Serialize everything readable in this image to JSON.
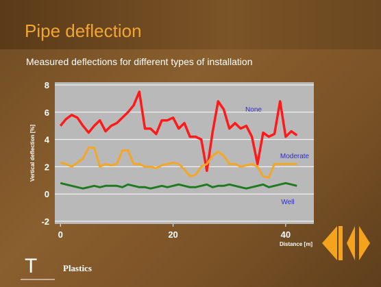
{
  "title": "Pipe deflection",
  "subtitle": "Measured deflections for different types of installation",
  "logo_text": "Plastics",
  "chart_data": {
    "type": "line",
    "y_label": "Vertical deflection [%]",
    "x_label": "Distance [m]",
    "x": [
      0,
      1,
      2,
      3,
      4,
      5,
      6,
      7,
      8,
      9,
      10,
      11,
      12,
      13,
      14,
      15,
      16,
      17,
      18,
      19,
      20,
      21,
      22,
      23,
      24,
      25,
      26,
      27,
      28,
      29,
      30,
      31,
      32,
      33,
      34,
      35,
      36,
      37,
      38,
      39,
      40,
      41,
      42
    ],
    "series": [
      {
        "name": "None",
        "color": "#ff1a1a",
        "values": [
          5,
          5.5,
          5.8,
          5.6,
          5,
          4.5,
          5,
          5.4,
          4.6,
          5,
          5.2,
          5.6,
          6,
          6.5,
          7.5,
          4.8,
          4.8,
          4.4,
          5.4,
          5.4,
          5.6,
          4.8,
          5.2,
          4.2,
          4.2,
          4,
          1.7,
          4.5,
          6.8,
          6.2,
          4.8,
          5.2,
          4.8,
          5,
          4.2,
          2.2,
          4.5,
          4.2,
          4.4,
          6.8,
          4.2,
          4.6,
          4.3
        ]
      },
      {
        "name": "Moderate",
        "color": "#f5a623",
        "values": [
          2.3,
          2.2,
          2,
          2.3,
          2.6,
          3.4,
          3.4,
          2,
          2.2,
          2.1,
          2.2,
          3.2,
          3.2,
          2.2,
          2.2,
          2,
          2,
          1.9,
          2.1,
          2.2,
          2.3,
          2.2,
          1.8,
          1.3,
          1.4,
          2,
          2.2,
          2.8,
          3.1,
          2.8,
          2.2,
          2.2,
          2,
          2.1,
          2.2,
          2,
          1.3,
          1.2,
          2.2,
          2.2,
          2.2,
          2.2,
          2.2
        ]
      },
      {
        "name": "Well",
        "color": "#1f7a1f",
        "values": [
          0.8,
          0.7,
          0.6,
          0.5,
          0.4,
          0.5,
          0.6,
          0.5,
          0.6,
          0.6,
          0.6,
          0.5,
          0.7,
          0.6,
          0.5,
          0.5,
          0.4,
          0.5,
          0.6,
          0.5,
          0.6,
          0.7,
          0.6,
          0.5,
          0.5,
          0.6,
          0.7,
          0.5,
          0.6,
          0.6,
          0.7,
          0.6,
          0.5,
          0.4,
          0.5,
          0.6,
          0.7,
          0.5,
          0.6,
          0.7,
          0.8,
          0.7,
          0.6
        ]
      }
    ],
    "xlim": [
      -1,
      45
    ],
    "xticks": [
      0,
      20,
      40
    ],
    "ylim": [
      -2,
      8
    ],
    "yticks": [
      -2,
      0,
      2,
      4,
      6,
      8
    ],
    "grid": true
  }
}
